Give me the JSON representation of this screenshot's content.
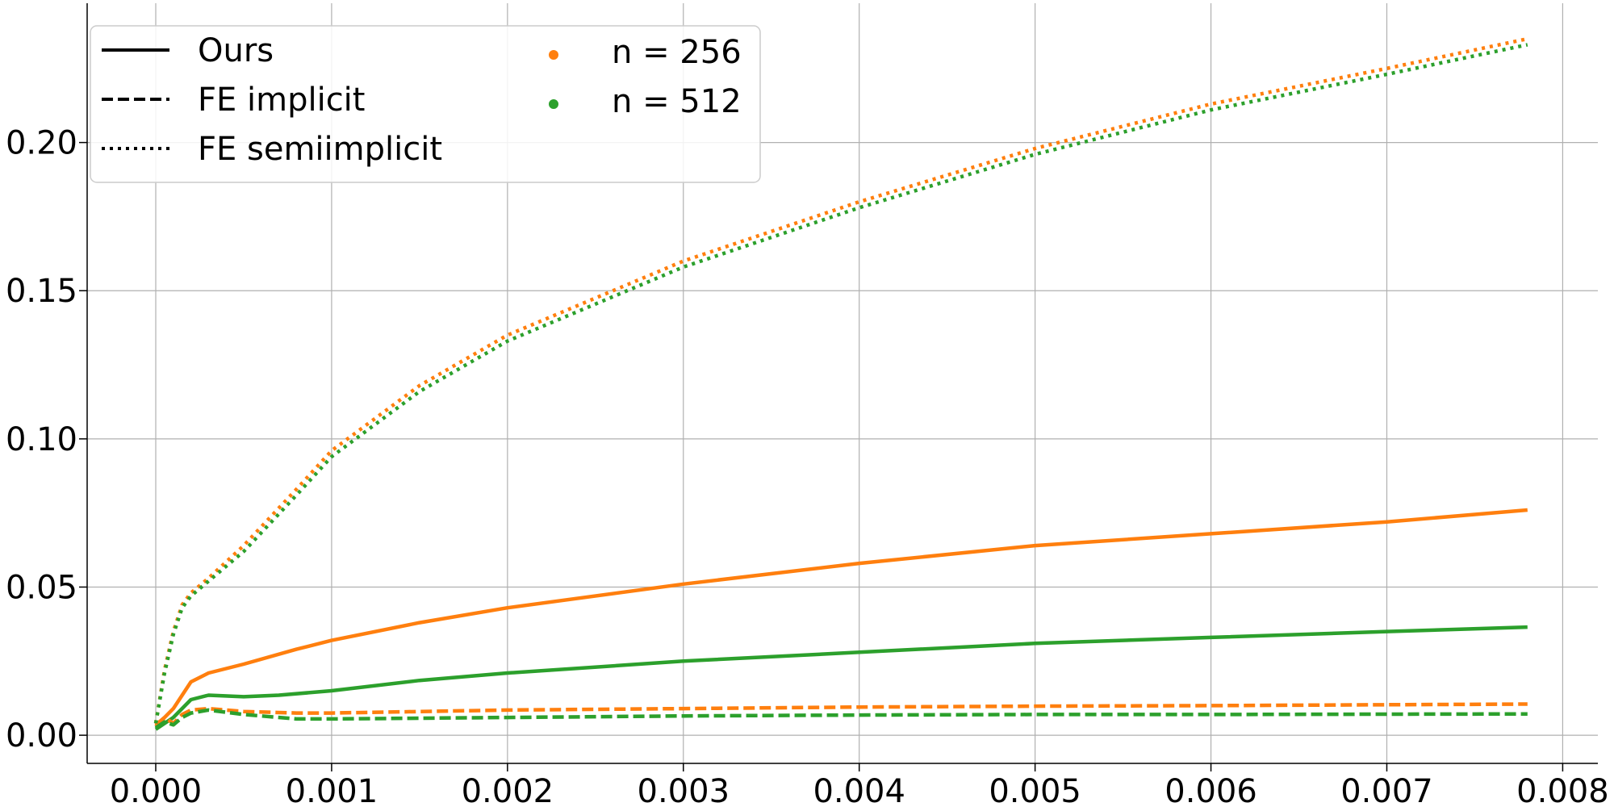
{
  "chart_data": {
    "type": "line",
    "title": "",
    "xlabel": "",
    "ylabel": "",
    "xlim": [
      -0.00039,
      0.0082
    ],
    "ylim": [
      -0.0095,
      0.247
    ],
    "x_ticks": [
      {
        "value": 0.0,
        "label": "0.000"
      },
      {
        "value": 0.001,
        "label": "0.001"
      },
      {
        "value": 0.002,
        "label": "0.002"
      },
      {
        "value": 0.003,
        "label": "0.003"
      },
      {
        "value": 0.004,
        "label": "0.004"
      },
      {
        "value": 0.005,
        "label": "0.005"
      },
      {
        "value": 0.006,
        "label": "0.006"
      },
      {
        "value": 0.007,
        "label": "0.007"
      },
      {
        "value": 0.008,
        "label": "0.008"
      }
    ],
    "y_ticks": [
      {
        "value": 0.0,
        "label": "0.00"
      },
      {
        "value": 0.05,
        "label": "0.05"
      },
      {
        "value": 0.1,
        "label": "0.10"
      },
      {
        "value": 0.15,
        "label": "0.15"
      },
      {
        "value": 0.2,
        "label": "0.20"
      }
    ],
    "grid": true,
    "legend": {
      "placement": "top-left",
      "style_entries": [
        {
          "label": "Ours",
          "dash": "solid"
        },
        {
          "label": "FE implicit",
          "dash": "dashed"
        },
        {
          "label": "FE semiimplicit",
          "dash": "dotted"
        }
      ],
      "color_entries": [
        {
          "label": "n = 256",
          "color": "#ff7f0e"
        },
        {
          "label": "n = 512",
          "color": "#2ca02c"
        }
      ]
    },
    "series": [
      {
        "method": "Ours",
        "group": "n = 256",
        "color": "#ff7f0e",
        "dash": "solid",
        "x": [
          0,
          0.0001,
          0.0002,
          0.0003,
          0.0005,
          0.0008,
          0.001,
          0.0015,
          0.002,
          0.003,
          0.004,
          0.005,
          0.006,
          0.007,
          0.0078
        ],
        "y": [
          0.003,
          0.009,
          0.018,
          0.021,
          0.024,
          0.029,
          0.032,
          0.038,
          0.043,
          0.051,
          0.058,
          0.064,
          0.068,
          0.072,
          0.076
        ]
      },
      {
        "method": "Ours",
        "group": "n = 512",
        "color": "#2ca02c",
        "dash": "solid",
        "x": [
          0,
          0.0001,
          0.0002,
          0.0003,
          0.0005,
          0.0007,
          0.001,
          0.0015,
          0.002,
          0.003,
          0.004,
          0.005,
          0.006,
          0.007,
          0.0078
        ],
        "y": [
          0.002,
          0.006,
          0.012,
          0.0135,
          0.013,
          0.0135,
          0.015,
          0.0185,
          0.021,
          0.025,
          0.028,
          0.031,
          0.033,
          0.035,
          0.0365
        ]
      },
      {
        "method": "FE implicit",
        "group": "n = 256",
        "color": "#ff7f0e",
        "dash": "dashed",
        "x": [
          0,
          5e-05,
          0.0001,
          0.00015,
          0.0002,
          0.0003,
          0.0005,
          0.0008,
          0.001,
          0.002,
          0.003,
          0.004,
          0.005,
          0.006,
          0.007,
          0.0078
        ],
        "y": [
          0.0035,
          0.006,
          0.004,
          0.007,
          0.0085,
          0.009,
          0.008,
          0.0075,
          0.0075,
          0.0085,
          0.009,
          0.0095,
          0.0098,
          0.01,
          0.0103,
          0.0105
        ]
      },
      {
        "method": "FE implicit",
        "group": "n = 512",
        "color": "#2ca02c",
        "dash": "dashed",
        "x": [
          0,
          5e-05,
          0.0001,
          0.00015,
          0.0002,
          0.0003,
          0.0005,
          0.0008,
          0.001,
          0.002,
          0.003,
          0.004,
          0.005,
          0.006,
          0.007,
          0.0078
        ],
        "y": [
          0.0025,
          0.0045,
          0.0035,
          0.006,
          0.0075,
          0.0085,
          0.007,
          0.0055,
          0.0055,
          0.006,
          0.0065,
          0.0068,
          0.007,
          0.007,
          0.0071,
          0.0072
        ]
      },
      {
        "method": "FE semiimplicit",
        "group": "n = 256",
        "color": "#ff7f0e",
        "dash": "dotted",
        "x": [
          0,
          5e-05,
          0.0001,
          0.00015,
          0.0002,
          0.0003,
          0.0005,
          0.0008,
          0.001,
          0.0015,
          0.002,
          0.003,
          0.004,
          0.005,
          0.006,
          0.007,
          0.0078
        ],
        "y": [
          0.004,
          0.022,
          0.035,
          0.044,
          0.048,
          0.053,
          0.064,
          0.083,
          0.096,
          0.118,
          0.135,
          0.16,
          0.18,
          0.198,
          0.213,
          0.225,
          0.235
        ]
      },
      {
        "method": "FE semiimplicit",
        "group": "n = 512",
        "color": "#2ca02c",
        "dash": "dotted",
        "x": [
          0,
          5e-05,
          0.0001,
          0.00015,
          0.0002,
          0.0003,
          0.0005,
          0.0008,
          0.001,
          0.0015,
          0.002,
          0.003,
          0.004,
          0.005,
          0.006,
          0.007,
          0.0078
        ],
        "y": [
          0.004,
          0.021,
          0.034,
          0.043,
          0.047,
          0.052,
          0.062,
          0.081,
          0.094,
          0.116,
          0.133,
          0.158,
          0.178,
          0.196,
          0.211,
          0.223,
          0.233
        ]
      }
    ]
  }
}
